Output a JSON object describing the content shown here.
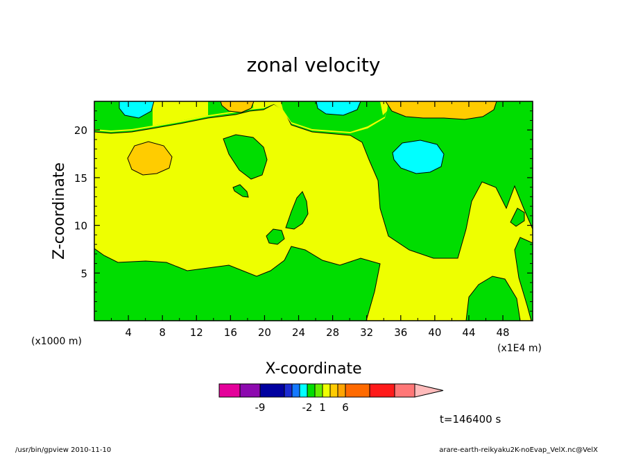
{
  "chart_data": {
    "type": "heatmap",
    "title": "zonal velocity",
    "xlabel": "X-coordinate",
    "ylabel": "Z-coordinate",
    "x_unit_left": "(x1000 m)",
    "x_unit_right": "(x1E4 m)",
    "xlim": [
      0,
      51.5
    ],
    "ylim": [
      0,
      23
    ],
    "x_ticks": [
      "4",
      "8",
      "12",
      "16",
      "20",
      "24",
      "28",
      "32",
      "36",
      "40",
      "44",
      "48"
    ],
    "y_ticks": [
      "5",
      "10",
      "15",
      "20"
    ],
    "x_tick_values": [
      4,
      8,
      12,
      16,
      20,
      24,
      28,
      32,
      36,
      40,
      44,
      48
    ],
    "y_tick_values": [
      5,
      10,
      15,
      20
    ],
    "colorbar": {
      "colors": [
        "#e4009a",
        "#8d0aaf",
        "#0000a0",
        "#1b2bd3",
        "#1479ff",
        "#00ffff",
        "#00dd00",
        "#66ee00",
        "#eeff00",
        "#ffcc00",
        "#ffa400",
        "#ff6a00",
        "#ff1a1a",
        "#ff7777",
        "#ffbbbb"
      ],
      "labels": [
        {
          "text": "-9",
          "index": 2
        },
        {
          "text": "-2",
          "index": 6
        },
        {
          "text": "1",
          "index": 8
        },
        {
          "text": "6",
          "index": 11
        }
      ]
    },
    "time_label": "t=146400 s",
    "regions": {
      "yellow": "#eeff00",
      "green": "#00dd00",
      "cyan": "#00ffff",
      "orange": "#ffcc00"
    }
  },
  "footer": {
    "left": "/usr/bin/gpview   2010-11-10",
    "right": "arare-earth-reikyaku2K-noEvap_VelX.nc@VelX"
  }
}
